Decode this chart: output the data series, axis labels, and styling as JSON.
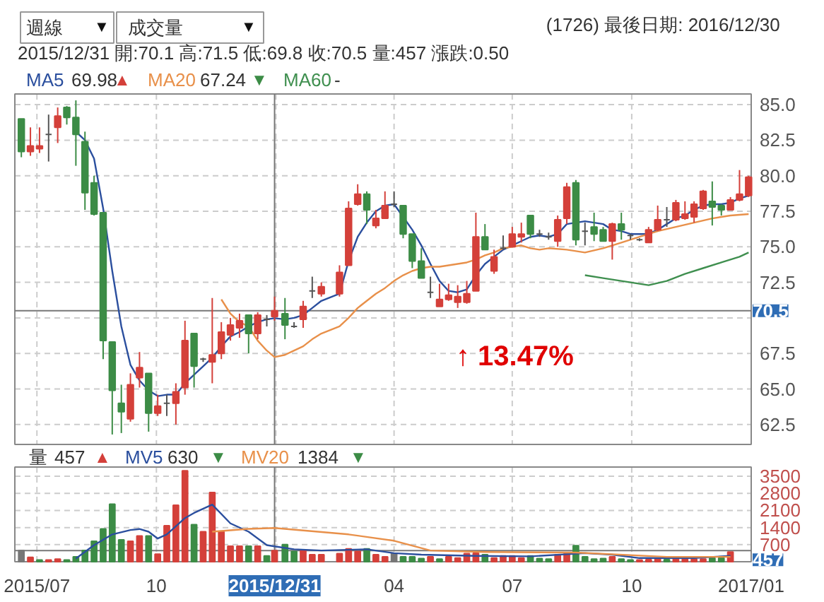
{
  "chart_data": [
    {
      "type": "candlestick",
      "subtitle": "2015/12/31 開:70.1 高:71.5 低:69.8 收:70.5 量:457 漲跌:0.50",
      "x": [
        "2015-06-19",
        "2015-06-26",
        "2015-07-03",
        "2015-07-10",
        "2015-07-17",
        "2015-07-24",
        "2015-07-31",
        "2015-08-07",
        "2015-08-14",
        "2015-08-21",
        "2015-08-28",
        "2015-09-04",
        "2015-09-11",
        "2015-09-18",
        "2015-09-25",
        "2015-10-02",
        "2015-10-09",
        "2015-10-16",
        "2015-10-23",
        "2015-10-30",
        "2015-11-06",
        "2015-11-13",
        "2015-11-20",
        "2015-11-27",
        "2015-12-04",
        "2015-12-11",
        "2015-12-18",
        "2015-12-25",
        "2015-12-31",
        "2016-01-08",
        "2016-01-15",
        "2016-01-22",
        "2016-01-29",
        "2016-02-05",
        "2016-02-19",
        "2016-02-26",
        "2016-03-04",
        "2016-03-11",
        "2016-03-18",
        "2016-03-25",
        "2016-04-01",
        "2016-04-08",
        "2016-04-15",
        "2016-04-22",
        "2016-04-29",
        "2016-05-06",
        "2016-05-13",
        "2016-05-20",
        "2016-05-27",
        "2016-06-03",
        "2016-06-10",
        "2016-06-17",
        "2016-06-24",
        "2016-07-01",
        "2016-07-08",
        "2016-07-15",
        "2016-07-22",
        "2016-07-29",
        "2016-08-05",
        "2016-08-12",
        "2016-08-19",
        "2016-08-26",
        "2016-09-02",
        "2016-09-09",
        "2016-09-16",
        "2016-09-23",
        "2016-09-30",
        "2016-10-07",
        "2016-10-14",
        "2016-10-21",
        "2016-10-28",
        "2016-11-04",
        "2016-11-11",
        "2016-11-18",
        "2016-11-25",
        "2016-12-02",
        "2016-12-09",
        "2016-12-16",
        "2016-12-23",
        "2016-12-30"
      ],
      "ohlc": [
        [
          84.0,
          84.0,
          81.3,
          81.7
        ],
        [
          81.7,
          83.4,
          81.4,
          82.1
        ],
        [
          81.9,
          83.4,
          81.6,
          82.1
        ],
        [
          82.9,
          84.3,
          81.0,
          82.9
        ],
        [
          83.4,
          84.8,
          82.3,
          84.2
        ],
        [
          84.8,
          84.9,
          83.6,
          84.1
        ],
        [
          84.1,
          85.3,
          80.7,
          82.9
        ],
        [
          82.4,
          83.1,
          77.6,
          78.8
        ],
        [
          79.5,
          80.0,
          77.2,
          77.3
        ],
        [
          77.4,
          77.4,
          67.1,
          68.4
        ],
        [
          68.3,
          68.3,
          61.8,
          64.9
        ],
        [
          64.0,
          65.3,
          61.9,
          63.4
        ],
        [
          62.9,
          66.1,
          62.7,
          65.3
        ],
        [
          65.8,
          67.6,
          65.1,
          66.5
        ],
        [
          66.1,
          66.1,
          62.0,
          63.3
        ],
        [
          63.3,
          64.6,
          63.1,
          63.8
        ],
        [
          64.0,
          64.6,
          63.1,
          64.0
        ],
        [
          64.0,
          65.4,
          62.5,
          64.8
        ],
        [
          65.1,
          69.8,
          64.6,
          68.4
        ],
        [
          68.9,
          68.9,
          65.1,
          66.6
        ],
        [
          67.1,
          67.2,
          66.9,
          67.1
        ],
        [
          66.9,
          71.4,
          65.4,
          67.4
        ],
        [
          67.5,
          69.7,
          67.1,
          69.0
        ],
        [
          68.8,
          70.0,
          68.4,
          69.5
        ],
        [
          69.3,
          70.3,
          68.6,
          69.8
        ],
        [
          70.2,
          70.2,
          67.5,
          68.9
        ],
        [
          68.9,
          70.4,
          68.5,
          70.2
        ],
        [
          69.9,
          70.2,
          69.4,
          69.9
        ],
        [
          70.1,
          71.5,
          69.8,
          70.5
        ],
        [
          70.3,
          71.4,
          68.5,
          69.5
        ],
        [
          69.4,
          69.7,
          69.3,
          69.4
        ],
        [
          69.9,
          71.2,
          69.3,
          70.8
        ],
        [
          71.9,
          72.9,
          71.4,
          71.9
        ],
        [
          71.7,
          72.5,
          71.5,
          72.2
        ],
        [
          71.7,
          73.7,
          71.5,
          73.2
        ],
        [
          73.7,
          78.2,
          73.7,
          77.7
        ],
        [
          78.0,
          79.4,
          77.9,
          78.7
        ],
        [
          78.7,
          78.9,
          76.6,
          77.6
        ],
        [
          76.5,
          77.6,
          76.3,
          77.0
        ],
        [
          77.0,
          78.9,
          77.0,
          77.9
        ],
        [
          78.0,
          78.9,
          77.8,
          78.0
        ],
        [
          77.9,
          77.9,
          75.6,
          75.9
        ],
        [
          75.9,
          75.9,
          73.5,
          74.0
        ],
        [
          74.0,
          74.9,
          72.8,
          72.8
        ],
        [
          71.8,
          72.9,
          71.4,
          71.8
        ],
        [
          70.8,
          72.4,
          70.8,
          71.3
        ],
        [
          71.3,
          72.4,
          71.2,
          71.6
        ],
        [
          71.1,
          72.3,
          70.7,
          71.5
        ],
        [
          71.1,
          72.6,
          71.0,
          71.7
        ],
        [
          71.9,
          77.4,
          71.9,
          75.7
        ],
        [
          75.7,
          76.6,
          74.8,
          74.8
        ],
        [
          73.3,
          74.8,
          73.1,
          74.3
        ],
        [
          74.9,
          75.8,
          74.8,
          74.9
        ],
        [
          75.0,
          76.4,
          75.0,
          75.9
        ],
        [
          75.7,
          76.7,
          75.3,
          75.9
        ],
        [
          77.2,
          77.2,
          75.6,
          75.9
        ],
        [
          75.9,
          76.2,
          75.7,
          75.9
        ],
        [
          75.7,
          76.0,
          75.5,
          75.7
        ],
        [
          75.4,
          77.2,
          75.0,
          76.9
        ],
        [
          77.0,
          79.5,
          76.6,
          79.2
        ],
        [
          79.5,
          79.7,
          75.1,
          75.5
        ],
        [
          76.1,
          76.7,
          75.1,
          76.1
        ],
        [
          76.4,
          77.4,
          75.4,
          75.9
        ],
        [
          76.2,
          76.4,
          75.4,
          75.4
        ],
        [
          75.4,
          76.7,
          74.1,
          76.6
        ],
        [
          76.6,
          77.4,
          75.5,
          76.2
        ],
        [
          75.8,
          75.9,
          75.5,
          75.8
        ],
        [
          75.5,
          75.6,
          75.4,
          75.5
        ],
        [
          75.3,
          76.4,
          75.3,
          76.2
        ],
        [
          76.2,
          77.9,
          76.1,
          76.9
        ],
        [
          76.9,
          77.8,
          76.4,
          76.9
        ],
        [
          76.9,
          78.3,
          76.8,
          78.1
        ],
        [
          77.0,
          78.2,
          76.9,
          77.3
        ],
        [
          77.1,
          78.2,
          76.7,
          78.0
        ],
        [
          77.7,
          79.0,
          77.6,
          78.9
        ],
        [
          78.2,
          79.6,
          76.5,
          77.8
        ],
        [
          77.9,
          78.0,
          77.2,
          77.6
        ],
        [
          77.6,
          78.5,
          77.6,
          78.3
        ],
        [
          78.3,
          80.4,
          78.2,
          78.7
        ],
        [
          78.6,
          80.0,
          78.5,
          79.9
        ]
      ],
      "colors": [
        "#3c8c46",
        "#d4403a",
        "#d4403a",
        "#555555",
        "#d4403a",
        "#3c8c46",
        "#3c8c46",
        "#3c8c46",
        "#3c8c46",
        "#3c8c46",
        "#3c8c46",
        "#3c8c46",
        "#d4403a",
        "#d4403a",
        "#3c8c46",
        "#d4403a",
        "#555555",
        "#d4403a",
        "#d4403a",
        "#3c8c46",
        "#555555",
        "#d4403a",
        "#d4403a",
        "#d4403a",
        "#d4403a",
        "#3c8c46",
        "#d4403a",
        "#555555",
        "#d4403a",
        "#3c8c46",
        "#555555",
        "#d4403a",
        "#555555",
        "#d4403a",
        "#d4403a",
        "#d4403a",
        "#d4403a",
        "#3c8c46",
        "#d4403a",
        "#d4403a",
        "#555555",
        "#3c8c46",
        "#3c8c46",
        "#3c8c46",
        "#555555",
        "#d4403a",
        "#d4403a",
        "#d4403a",
        "#d4403a",
        "#d4403a",
        "#3c8c46",
        "#d4403a",
        "#555555",
        "#d4403a",
        "#d4403a",
        "#3c8c46",
        "#555555",
        "#555555",
        "#d4403a",
        "#d4403a",
        "#3c8c46",
        "#555555",
        "#3c8c46",
        "#3c8c46",
        "#d4403a",
        "#3c8c46",
        "#555555",
        "#555555",
        "#d4403a",
        "#d4403a",
        "#555555",
        "#d4403a",
        "#d4403a",
        "#d4403a",
        "#d4403a",
        "#3c8c46",
        "#3c8c46",
        "#d4403a",
        "#d4403a",
        "#d4403a"
      ],
      "series": [
        {
          "name": "MA5",
          "type": "line",
          "color": "#2b4f9e",
          "values": [
            null,
            null,
            null,
            null,
            null,
            null,
            83.1,
            82.5,
            81.2,
            77.7,
            73.3,
            69.4,
            66.7,
            65.6,
            64.9,
            64.5,
            64.6,
            64.6,
            65.4,
            66.0,
            66.6,
            67.2,
            68.0,
            68.7,
            69.0,
            69.4,
            69.7,
            69.9,
            69.98,
            69.9,
            70.0,
            70.2,
            70.7,
            71.2,
            71.7,
            74.0,
            75.7,
            76.7,
            77.5,
            77.9,
            78.0,
            77.1,
            76.2,
            75.1,
            73.8,
            72.6,
            71.9,
            71.8,
            72.0,
            73.0,
            73.8,
            74.3,
            74.8,
            75.1,
            75.4,
            75.7,
            75.8,
            75.7,
            75.9,
            76.6,
            76.7,
            76.8,
            76.7,
            76.6,
            76.2,
            76.1,
            75.9,
            75.9,
            75.9,
            76.2,
            76.6,
            77.0,
            77.2,
            77.6,
            77.9,
            78.0,
            78.0,
            78.1,
            78.4,
            78.6
          ]
        },
        {
          "name": "MA20",
          "type": "line",
          "color": "#e8904a",
          "x": [
            "2015-11-20",
            "2015-11-27",
            "2015-12-04",
            "2015-12-11",
            "2015-12-18",
            "2015-12-25",
            "2015-12-31",
            "2016-01-08",
            "2016-01-15",
            "2016-01-22",
            "2016-01-29",
            "2016-02-05",
            "2016-02-19",
            "2016-02-26",
            "2016-03-04",
            "2016-03-11",
            "2016-03-18",
            "2016-03-25",
            "2016-04-01",
            "2016-04-08",
            "2016-04-15",
            "2016-04-22",
            "2016-04-29",
            "2016-05-06",
            "2016-05-13",
            "2016-05-20",
            "2016-05-27",
            "2016-06-03",
            "2016-06-10",
            "2016-06-17",
            "2016-06-24",
            "2016-07-01",
            "2016-07-08",
            "2016-07-15",
            "2016-07-22",
            "2016-07-29",
            "2016-08-12",
            "2016-08-26",
            "2016-09-09",
            "2016-09-23",
            "2016-10-07",
            "2016-10-21",
            "2016-11-04",
            "2016-11-18",
            "2016-12-02",
            "2016-12-16",
            "2016-12-30"
          ],
          "values": [
            71.3,
            70.3,
            69.7,
            69.4,
            68.4,
            67.7,
            67.24,
            67.4,
            67.7,
            68.0,
            68.5,
            68.9,
            69.4,
            70.0,
            70.7,
            71.2,
            71.7,
            72.1,
            72.6,
            73.0,
            73.3,
            73.5,
            73.6,
            73.6,
            73.7,
            73.8,
            73.9,
            74.1,
            74.4,
            74.6,
            74.9,
            75.0,
            75.1,
            74.9,
            74.8,
            74.9,
            74.8,
            74.6,
            74.9,
            75.3,
            75.7,
            76.1,
            76.4,
            76.7,
            77.0,
            77.2,
            77.3
          ]
        },
        {
          "name": "MA60",
          "type": "line",
          "color": "#3f8f4f",
          "x": [
            "2016-08-26",
            "2016-09-09",
            "2016-09-23",
            "2016-10-07",
            "2016-10-14",
            "2016-10-28",
            "2016-11-11",
            "2016-11-25",
            "2016-12-09",
            "2016-12-23",
            "2016-12-30"
          ],
          "values": [
            73.0,
            72.8,
            72.6,
            72.4,
            72.3,
            72.6,
            73.1,
            73.5,
            73.9,
            74.3,
            74.6
          ]
        }
      ],
      "xlim": [
        "2015-06-14",
        "2017-01-01"
      ],
      "xticks": [
        {
          "value": "2015-07-01",
          "label": null
        },
        {
          "value": "2015-10-01",
          "label": null
        },
        {
          "value": "2016-01-01",
          "label": null
        },
        {
          "value": "2016-04-01",
          "label": null
        },
        {
          "value": "2016-07-01",
          "label": null
        },
        {
          "value": "2016-10-01",
          "label": null
        },
        {
          "value": "2017-01-01",
          "label": null
        }
      ],
      "ylim": [
        61.1,
        85.75
      ],
      "yticks": [
        {
          "value": 62.5,
          "label": "62.5"
        },
        {
          "value": 65,
          "label": "65.0"
        },
        {
          "value": 67.5,
          "label": "67.5"
        },
        {
          "value": 70,
          "label": null
        },
        {
          "value": 72.5,
          "label": "72.5"
        },
        {
          "value": 75,
          "label": "75.0"
        },
        {
          "value": 77.5,
          "label": "77.5"
        },
        {
          "value": 80,
          "label": "80.0"
        },
        {
          "value": 82.5,
          "label": "82.5"
        },
        {
          "value": 85,
          "label": "85.0"
        }
      ],
      "tick_labels": "y",
      "grid": true,
      "ref_lines": [
        {
          "axis": "x",
          "value": "2015-12-31",
          "label": null
        },
        {
          "axis": "y",
          "value": 70.5,
          "label": "70.5"
        }
      ],
      "annotations": [
        "週線",
        "成交量",
        "(1726)  最後日期: 2016/12/30",
        "69.98",
        "▲",
        "67.24",
        "▼",
        "-",
        "↑ 13.47%",
        "▼",
        "▼"
      ]
    },
    {
      "type": "bar",
      "series": [
        {
          "type": "bar",
          "x": [
            "2015-06-19",
            "2015-06-26",
            "2015-07-03",
            "2015-07-10",
            "2015-07-17",
            "2015-07-24",
            "2015-07-31",
            "2015-08-07",
            "2015-08-14",
            "2015-08-21",
            "2015-08-28",
            "2015-09-04",
            "2015-09-11",
            "2015-09-18",
            "2015-09-25",
            "2015-10-02",
            "2015-10-09",
            "2015-10-16",
            "2015-10-23",
            "2015-10-30",
            "2015-11-06",
            "2015-11-13",
            "2015-11-20",
            "2015-11-27",
            "2015-12-04",
            "2015-12-11",
            "2015-12-18",
            "2015-12-25",
            "2015-12-31",
            "2016-01-08",
            "2016-01-15",
            "2016-01-22",
            "2016-01-29",
            "2016-02-05",
            "2016-02-19",
            "2016-02-26",
            "2016-03-04",
            "2016-03-11",
            "2016-03-18",
            "2016-03-25",
            "2016-04-01",
            "2016-04-08",
            "2016-04-15",
            "2016-04-22",
            "2016-04-29",
            "2016-05-06",
            "2016-05-13",
            "2016-05-20",
            "2016-05-27",
            "2016-06-03",
            "2016-06-10",
            "2016-06-17",
            "2016-06-24",
            "2016-07-01",
            "2016-07-08",
            "2016-07-15",
            "2016-07-22",
            "2016-07-29",
            "2016-08-05",
            "2016-08-12",
            "2016-08-19",
            "2016-08-26",
            "2016-09-02",
            "2016-09-09",
            "2016-09-16",
            "2016-09-23",
            "2016-09-30",
            "2016-10-07",
            "2016-10-14",
            "2016-10-21",
            "2016-10-28",
            "2016-11-04",
            "2016-11-11",
            "2016-11-18",
            "2016-11-25",
            "2016-12-02",
            "2016-12-09",
            "2016-12-16"
          ],
          "values": [
            460,
            180,
            70,
            70,
            110,
            70,
            200,
            460,
            840,
            1350,
            2360,
            900,
            840,
            1060,
            1060,
            310,
            1480,
            2320,
            3730,
            1520,
            1230,
            2840,
            1230,
            640,
            640,
            640,
            640,
            240,
            457,
            700,
            420,
            460,
            290,
            290,
            330,
            530,
            420,
            530,
            290,
            200,
            350,
            200,
            200,
            130,
            200,
            110,
            200,
            150,
            330,
            350,
            290,
            150,
            240,
            240,
            150,
            240,
            130,
            110,
            290,
            330,
            660,
            200,
            110,
            130,
            200,
            110,
            70,
            70,
            90,
            130,
            90,
            150,
            110,
            110,
            110,
            150,
            150,
            400
          ],
          "colors": [
            "#777777",
            "#d4403a",
            "#3c8c46",
            "#d4403a",
            "#d4403a",
            "#3c8c46",
            "#3c8c46",
            "#3c8c46",
            "#3c8c46",
            "#3c8c46",
            "#3c8c46",
            "#3c8c46",
            "#d4403a",
            "#d4403a",
            "#3c8c46",
            "#d4403a",
            "#d4403a",
            "#d4403a",
            "#d4403a",
            "#3c8c46",
            "#d4403a",
            "#d4403a",
            "#d4403a",
            "#d4403a",
            "#d4403a",
            "#3c8c46",
            "#d4403a",
            "#3c8c46",
            "#d4403a",
            "#3c8c46",
            "#3c8c46",
            "#d4403a",
            "#d4403a",
            "#d4403a",
            "#d4403a",
            "#d4403a",
            "#d4403a",
            "#3c8c46",
            "#d4403a",
            "#d4403a",
            "#777777",
            "#3c8c46",
            "#3c8c46",
            "#3c8c46",
            "#d4403a",
            "#3c8c46",
            "#d4403a",
            "#d4403a",
            "#d4403a",
            "#d4403a",
            "#3c8c46",
            "#d4403a",
            "#d4403a",
            "#d4403a",
            "#d4403a",
            "#3c8c46",
            "#3c8c46",
            "#3c8c46",
            "#d4403a",
            "#d4403a",
            "#3c8c46",
            "#3c8c46",
            "#3c8c46",
            "#3c8c46",
            "#d4403a",
            "#3c8c46",
            "#3c8c46",
            "#d4403a",
            "#d4403a",
            "#d4403a",
            "#3c8c46",
            "#d4403a",
            "#d4403a",
            "#d4403a",
            "#d4403a",
            "#3c8c46",
            "#3c8c46",
            "#d4403a"
          ]
        },
        {
          "name": "MV5",
          "type": "line",
          "color": "#2b4f9e",
          "x": [
            "2015-07-31",
            "2015-08-14",
            "2015-08-28",
            "2015-09-11",
            "2015-09-18",
            "2015-09-25",
            "2015-10-02",
            "2015-10-09",
            "2015-10-23",
            "2015-10-30",
            "2015-11-13",
            "2015-11-27",
            "2015-12-11",
            "2015-12-25",
            "2015-12-31",
            "2016-01-15",
            "2016-02-05",
            "2016-03-11",
            "2016-04-01",
            "2016-04-22",
            "2016-06-03",
            "2016-07-15",
            "2016-08-26",
            "2016-09-16",
            "2016-10-07",
            "2016-11-18",
            "2016-12-16"
          ],
          "values": [
            130,
            680,
            1120,
            1300,
            1340,
            1230,
            950,
            1120,
            1790,
            2000,
            2340,
            1570,
            1230,
            680,
            630,
            510,
            460,
            510,
            350,
            290,
            240,
            220,
            350,
            290,
            150,
            150,
            240
          ]
        },
        {
          "name": "MV20",
          "type": "line",
          "color": "#e8904a",
          "x": [
            "2015-11-13",
            "2015-12-11",
            "2015-12-31",
            "2016-02-26",
            "2016-04-01",
            "2016-04-29",
            "2016-06-10",
            "2016-08-19",
            "2016-10-28",
            "2016-12-16"
          ],
          "values": [
            1230,
            1345,
            1384,
            1120,
            860,
            460,
            400,
            375,
            200,
            200
          ]
        }
      ],
      "xlim": [
        "2015-06-14",
        "2017-01-01"
      ],
      "xticks": [
        {
          "value": "2015-07-01",
          "label": "2015/07"
        },
        {
          "value": "2015-10-01",
          "label": "10"
        },
        {
          "value": "2016-01-01",
          "label": null
        },
        {
          "value": "2016-04-01",
          "label": "04"
        },
        {
          "value": "2016-07-01",
          "label": "07"
        },
        {
          "value": "2016-10-01",
          "label": "10"
        },
        {
          "value": "2017-01-01",
          "label": "2017/01"
        }
      ],
      "ylim": [
        0,
        3880
      ],
      "yticks": [
        700,
        1400,
        2100,
        2800,
        3500
      ],
      "grid": true,
      "ref_lines": [
        {
          "axis": "x",
          "value": "2015-12-31",
          "label": "2015/12/31"
        },
        {
          "axis": "y",
          "value": 457,
          "label": "457"
        }
      ],
      "annotations": [
        "量",
        "457",
        "▲",
        "630",
        "▼",
        "1384",
        "▼"
      ]
    }
  ]
}
